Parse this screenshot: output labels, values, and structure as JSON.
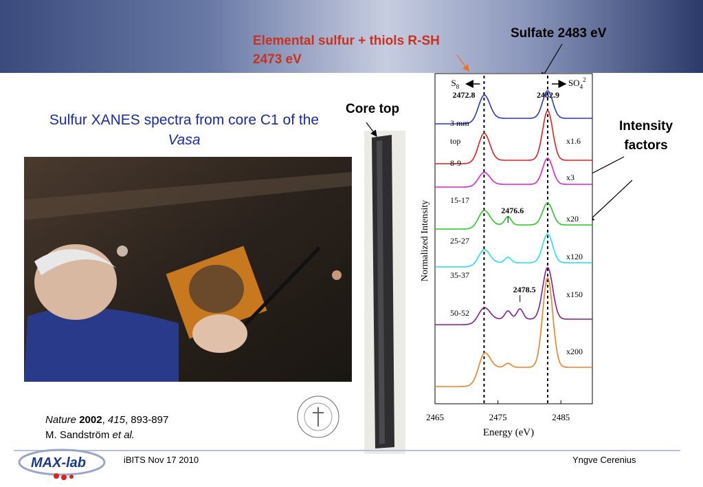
{
  "banner": {
    "left_note": "Elemental sulfur + thiols R-SH  2473 eV",
    "right_note": "Sulfate 2483 eV"
  },
  "title": {
    "text": "Sulfur XANES spectra from core C1 of the",
    "emphasis": "Vasa"
  },
  "core_label": "Core top",
  "intensity_label": "Intensity factors",
  "citation": {
    "line1": [
      {
        "text": "Nature",
        "style": "italic"
      },
      {
        "text": " 2002",
        "style": "bold"
      },
      {
        "text": ", ",
        "style": "normal"
      },
      {
        "text": "415",
        "style": "italic"
      },
      {
        "text": ", 893-897",
        "style": "normal"
      }
    ],
    "line2": [
      {
        "text": "M. Sandström ",
        "style": "normal"
      },
      {
        "text": "et al.",
        "style": "italic"
      }
    ]
  },
  "footer": {
    "logo": "MAX-lab",
    "event": "iBITS Nov 17 2010",
    "presenter": "Yngve Cerenius"
  },
  "chart": {
    "xlabel": "Energy (eV)",
    "ylabel": "Normalized Intensity",
    "xlim": [
      2465,
      2490
    ],
    "xticks": [
      2465,
      2475,
      2485
    ],
    "species": [
      {
        "label": "S",
        "sub": "8",
        "energy": 2472.8
      },
      {
        "label": "SO",
        "sub": "4",
        "sup": "2",
        "energy": 2482.9
      }
    ],
    "peaks": [
      {
        "energy": 2476.6
      },
      {
        "energy": 2478.5
      }
    ],
    "spectra": [
      {
        "sample": "3 mm",
        "color": "#2436d0"
      },
      {
        "sample": "top",
        "factor": "x1.6",
        "color": "#e41e1e"
      },
      {
        "sample": "8-9",
        "factor": "x3",
        "color": "#e020d8"
      },
      {
        "sample": "15-17",
        "factor": "x20",
        "color": "#22cc22"
      },
      {
        "sample": "25-27",
        "factor": "x120",
        "color": "#22e0ee"
      },
      {
        "sample": "35-37",
        "factor": "x150",
        "color": "#861a90"
      },
      {
        "sample": "50-52",
        "factor": "x200",
        "color": "#f08020"
      }
    ]
  }
}
